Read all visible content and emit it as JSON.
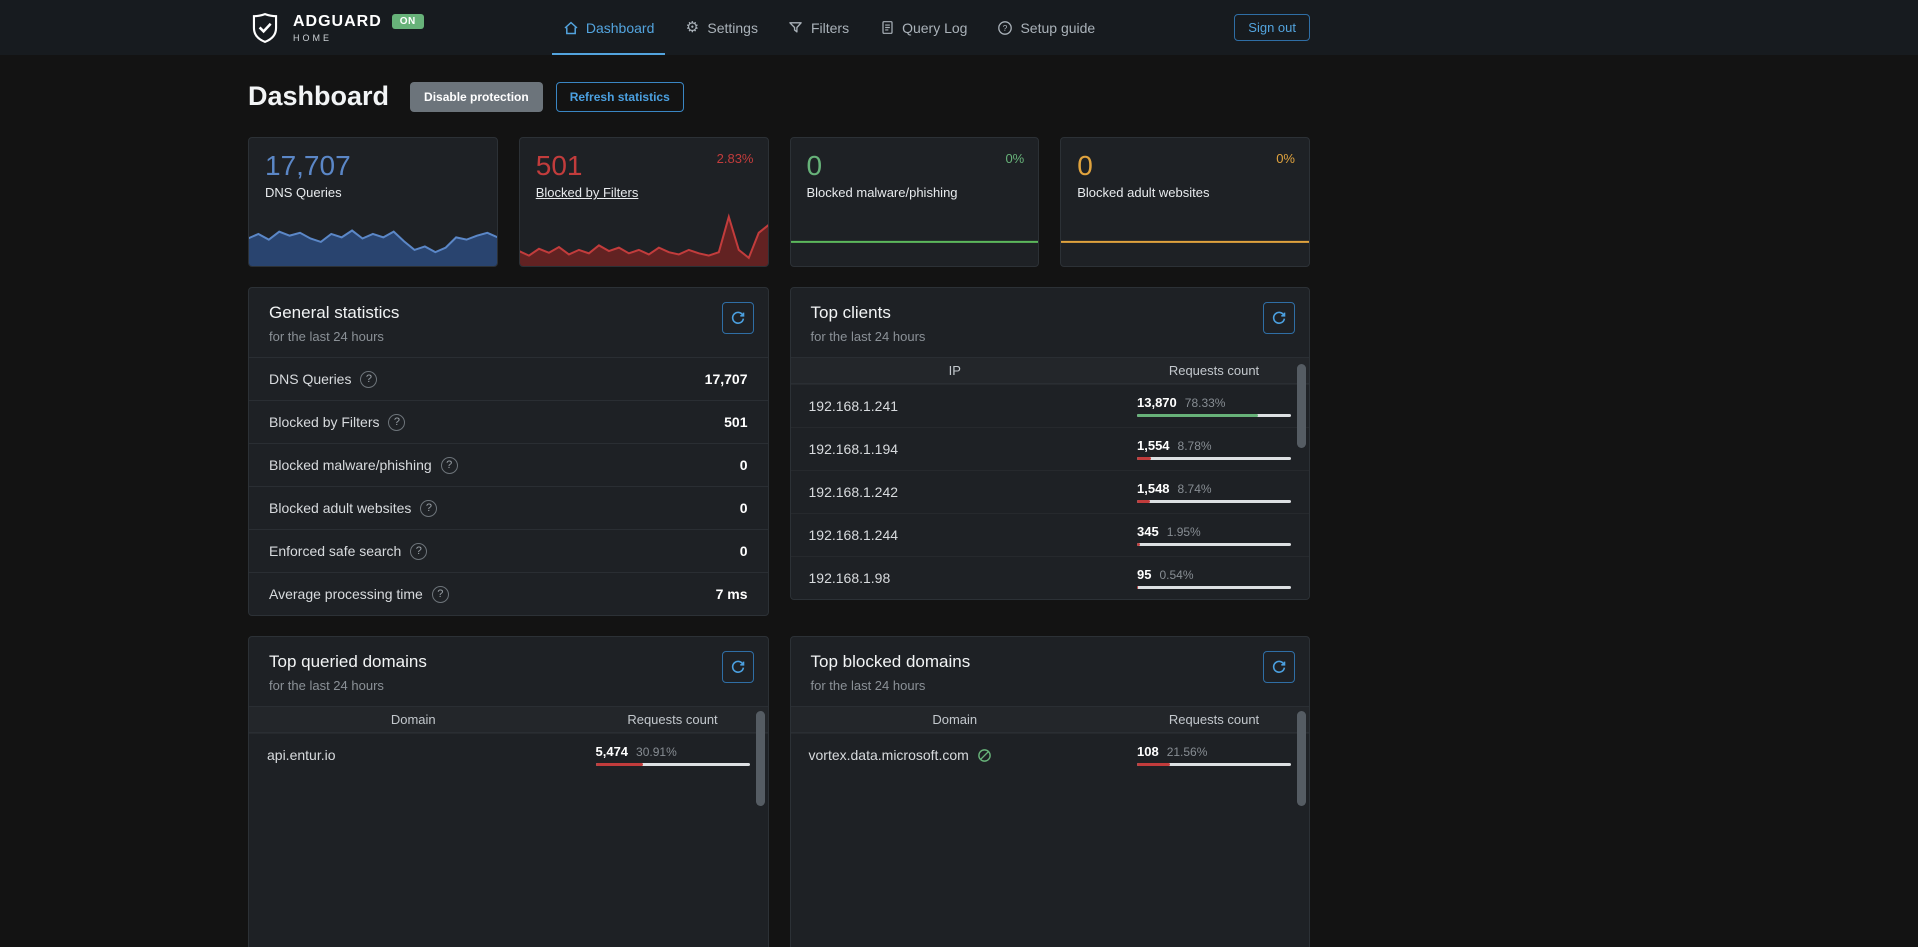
{
  "brand": {
    "name": "ADGUARD",
    "subtitle": "HOME",
    "status_badge": "ON"
  },
  "nav": {
    "items": [
      {
        "label": "Dashboard",
        "icon": "home-icon",
        "active": true
      },
      {
        "label": "Settings",
        "icon": "gear-icon",
        "active": false
      },
      {
        "label": "Filters",
        "icon": "funnel-icon",
        "active": false
      },
      {
        "label": "Query Log",
        "icon": "document-icon",
        "active": false
      },
      {
        "label": "Setup guide",
        "icon": "question-circle-icon",
        "active": false
      }
    ],
    "sign_out_label": "Sign out"
  },
  "page": {
    "title": "Dashboard",
    "disable_protection_label": "Disable protection",
    "refresh_statistics_label": "Refresh statistics"
  },
  "stat_cards": [
    {
      "value": "17,707",
      "label": "DNS Queries",
      "percent": "",
      "color": "#5b87c7"
    },
    {
      "value": "501",
      "label": "Blocked by Filters",
      "percent": "2.83%",
      "color": "#c23c3c"
    },
    {
      "value": "0",
      "label": "Blocked malware/phishing",
      "percent": "0%",
      "color": "#67b279"
    },
    {
      "value": "0",
      "label": "Blocked adult websites",
      "percent": "0%",
      "color": "#e0a33e"
    }
  ],
  "general_statistics": {
    "title": "General statistics",
    "subtitle": "for the last 24 hours",
    "rows": [
      {
        "label": "DNS Queries",
        "value": "17,707"
      },
      {
        "label": "Blocked by Filters",
        "value": "501"
      },
      {
        "label": "Blocked malware/phishing",
        "value": "0"
      },
      {
        "label": "Blocked adult websites",
        "value": "0"
      },
      {
        "label": "Enforced safe search",
        "value": "0"
      },
      {
        "label": "Average processing time",
        "value": "7 ms"
      }
    ]
  },
  "top_clients": {
    "title": "Top clients",
    "subtitle": "for the last 24 hours",
    "columns": [
      "IP",
      "Requests count"
    ],
    "rows": [
      {
        "ip": "192.168.1.241",
        "count": "13,870",
        "percent": "78.33%",
        "bar_color": "#67b279"
      },
      {
        "ip": "192.168.1.194",
        "count": "1,554",
        "percent": "8.78%",
        "bar_color": "#c23c3c"
      },
      {
        "ip": "192.168.1.242",
        "count": "1,548",
        "percent": "8.74%",
        "bar_color": "#c23c3c"
      },
      {
        "ip": "192.168.1.244",
        "count": "345",
        "percent": "1.95%",
        "bar_color": "#c23c3c"
      },
      {
        "ip": "192.168.1.98",
        "count": "95",
        "percent": "0.54%",
        "bar_color": "#c23c3c"
      }
    ]
  },
  "top_queried_domains": {
    "title": "Top queried domains",
    "subtitle": "for the last 24 hours",
    "columns": [
      "Domain",
      "Requests count"
    ],
    "rows": [
      {
        "domain": "api.entur.io",
        "count": "5,474",
        "percent": "30.91%",
        "bar_color": "#c23c3c"
      }
    ]
  },
  "top_blocked_domains": {
    "title": "Top blocked domains",
    "subtitle": "for the last 24 hours",
    "columns": [
      "Domain",
      "Requests count"
    ],
    "rows": [
      {
        "domain": "vortex.data.microsoft.com",
        "count": "108",
        "percent": "21.56%",
        "bar_color": "#c23c3c",
        "filtered_icon": true
      }
    ]
  },
  "icons": {
    "help_glyph": "?",
    "gear_glyph": "⚙",
    "refresh": "refresh-icon",
    "filtered": "circle-slash-icon"
  },
  "colors": {
    "accent_blue": "#4ba0e0",
    "queries_blue": "#5b87c7",
    "blocked_red": "#c23c3c",
    "malware_green": "#67b279",
    "adult_yellow": "#e0a33e",
    "on_badge_green": "#67b279",
    "bar_track_gray": "#dde0e3"
  },
  "chart_data": [
    {
      "type": "area",
      "series": "DNS Queries (last 24 hours sparkline)",
      "color": "#5b87c7",
      "fill": "#2c4a7c",
      "values": [
        0.5,
        0.58,
        0.48,
        0.62,
        0.55,
        0.6,
        0.5,
        0.44,
        0.58,
        0.52,
        0.64,
        0.5,
        0.58,
        0.52,
        0.62,
        0.45,
        0.3,
        0.36,
        0.26,
        0.34,
        0.52,
        0.48,
        0.55,
        0.6,
        0.52
      ]
    },
    {
      "type": "area",
      "series": "Blocked by Filters (last 24 hours sparkline)",
      "color": "#c23c3c",
      "fill": "#6e2222",
      "values": [
        0.28,
        0.2,
        0.32,
        0.25,
        0.35,
        0.22,
        0.3,
        0.24,
        0.38,
        0.28,
        0.34,
        0.24,
        0.3,
        0.22,
        0.34,
        0.26,
        0.22,
        0.3,
        0.24,
        0.2,
        0.26,
        0.88,
        0.3,
        0.16,
        0.6,
        0.74
      ]
    },
    {
      "type": "line",
      "series": "Blocked malware/phishing (flat, 0)",
      "color": "#5cb85c",
      "values": [
        0.44,
        0.44
      ]
    },
    {
      "type": "line",
      "series": "Blocked adult websites (flat, 0)",
      "color": "#e0a33e",
      "values": [
        0.44,
        0.44
      ]
    }
  ]
}
